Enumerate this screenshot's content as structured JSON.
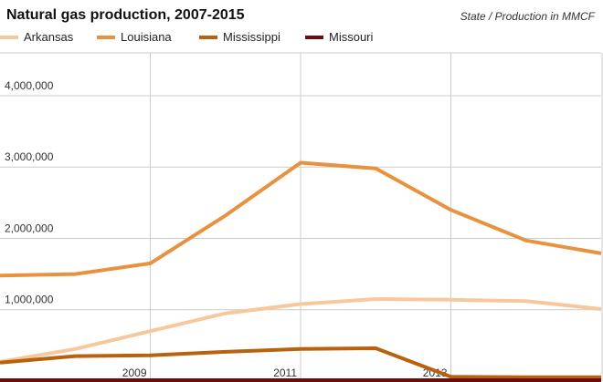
{
  "chart_data": {
    "type": "line",
    "title": "Natural gas production, 2007-2015",
    "subtitle": "State / Production in MMCF",
    "xlabel": "",
    "ylabel": "",
    "x": [
      2007,
      2008,
      2009,
      2010,
      2011,
      2012,
      2013,
      2014,
      2015
    ],
    "x_tick_labels": [
      "2009",
      "2011",
      "2013"
    ],
    "x_tick_values": [
      2009,
      2011,
      2013
    ],
    "y_tick_labels": [
      "1,000,000",
      "2,000,000",
      "3,000,000",
      "4,000,000"
    ],
    "y_tick_values": [
      1000000,
      2000000,
      3000000,
      4000000
    ],
    "xlim": [
      2007,
      2015
    ],
    "ylim": [
      0,
      4600000
    ],
    "grid": true,
    "legend_position": "top",
    "series": [
      {
        "name": "Arkansas",
        "color": "#f7c89b",
        "values": [
          270000,
          450000,
          700000,
          950000,
          1080000,
          1150000,
          1140000,
          1120000,
          1010000
        ]
      },
      {
        "name": "Louisiana",
        "color": "#e8923f",
        "values": [
          1480000,
          1500000,
          1650000,
          2320000,
          3060000,
          2980000,
          2400000,
          1970000,
          1790000
        ]
      },
      {
        "name": "Mississippi",
        "color": "#b8620f",
        "values": [
          260000,
          350000,
          360000,
          410000,
          450000,
          460000,
          60000,
          55000,
          55000
        ]
      },
      {
        "name": "Missouri",
        "color": "#6b0d0d",
        "values": [
          0,
          0,
          0,
          0,
          0,
          0,
          0,
          0,
          0
        ]
      }
    ]
  }
}
